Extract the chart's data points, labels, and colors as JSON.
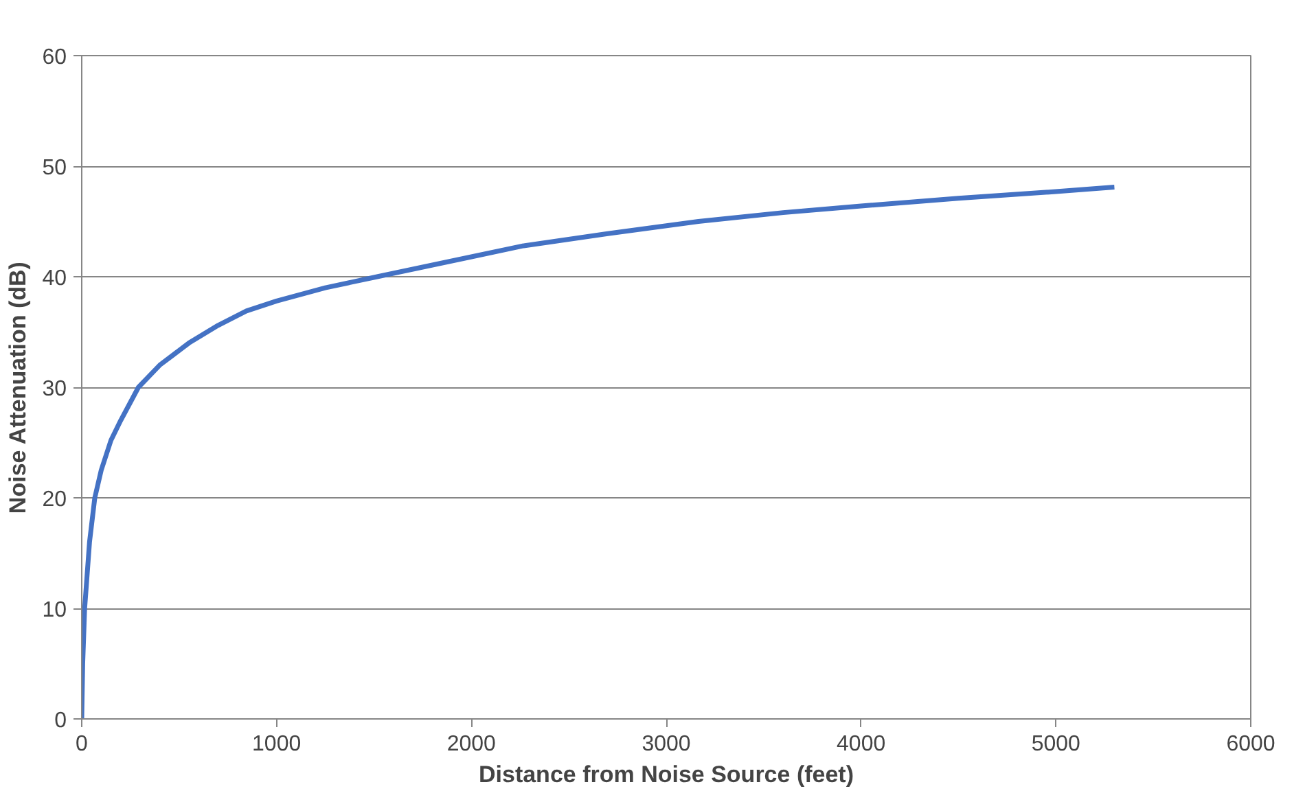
{
  "chart_data": {
    "type": "line",
    "xlabel": "Distance from Noise Source (feet)",
    "ylabel": "Noise Attenuation (dB)",
    "x": [
      0,
      5,
      15,
      40,
      67,
      100,
      150,
      200,
      291,
      400,
      550,
      700,
      845,
      1000,
      1250,
      1516,
      2000,
      2268,
      2700,
      3165,
      3600,
      4000,
      4500,
      5000,
      5300
    ],
    "series": [
      {
        "color": "#4472c4",
        "values": [
          0,
          5,
          10,
          16,
          20,
          22.5,
          25.2,
          27,
          30,
          32,
          34,
          35.6,
          36.9,
          37.8,
          39,
          40,
          41.8,
          42.8,
          43.9,
          45,
          45.8,
          46.4,
          47.1,
          47.7,
          48.1
        ]
      }
    ],
    "xlim": [
      0,
      6000
    ],
    "xticks": [
      0,
      1000,
      2000,
      3000,
      4000,
      5000,
      6000
    ],
    "ylim": [
      0,
      60
    ],
    "yticks": [
      0,
      10,
      20,
      30,
      40,
      50,
      60
    ],
    "grid": "y",
    "marker": "none",
    "line_style": "solid"
  }
}
